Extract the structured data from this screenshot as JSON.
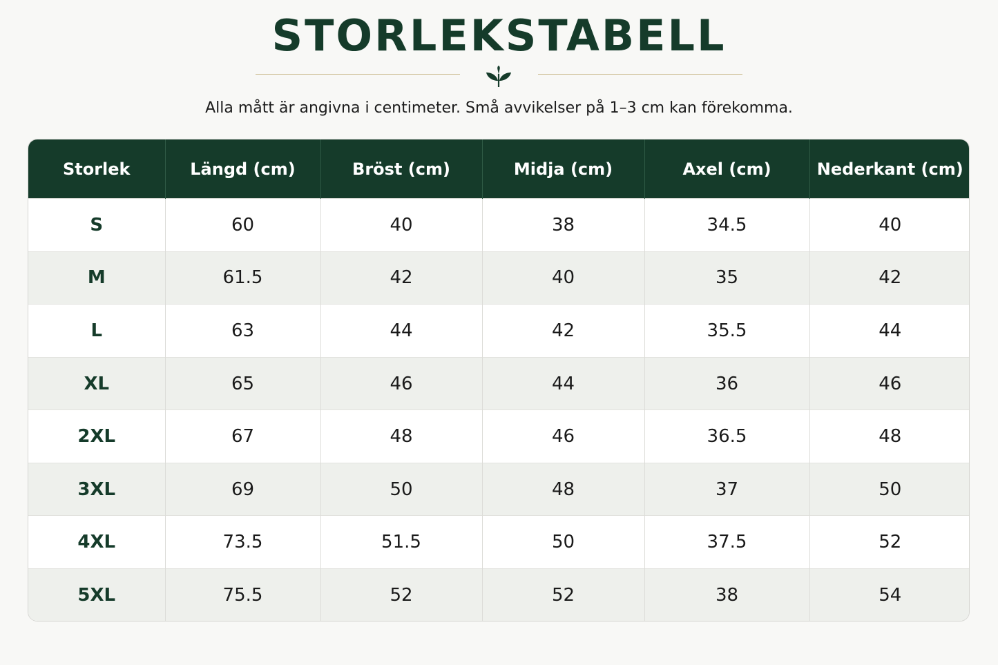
{
  "title": "STORLEKSTABELL",
  "subtitle": "Alla mått är angivna i centimeter. Små avvikelser på 1–3 cm kan förekomma.",
  "colors": {
    "primary": "#153b2a",
    "accent_line": "#c9b98a",
    "row_alt": "#eef0ec"
  },
  "icons": {
    "divider": "leaf-sprout-icon"
  },
  "table": {
    "headers": [
      "Storlek",
      "Längd (cm)",
      "Bröst (cm)",
      "Midja (cm)",
      "Axel (cm)",
      "Nederkant (cm)"
    ],
    "rows": [
      [
        "S",
        "60",
        "40",
        "38",
        "34.5",
        "40"
      ],
      [
        "M",
        "61.5",
        "42",
        "40",
        "35",
        "42"
      ],
      [
        "L",
        "63",
        "44",
        "42",
        "35.5",
        "44"
      ],
      [
        "XL",
        "65",
        "46",
        "44",
        "36",
        "46"
      ],
      [
        "2XL",
        "67",
        "48",
        "46",
        "36.5",
        "48"
      ],
      [
        "3XL",
        "69",
        "50",
        "48",
        "37",
        "50"
      ],
      [
        "4XL",
        "73.5",
        "51.5",
        "50",
        "37.5",
        "52"
      ],
      [
        "5XL",
        "75.5",
        "52",
        "52",
        "38",
        "54"
      ]
    ]
  }
}
